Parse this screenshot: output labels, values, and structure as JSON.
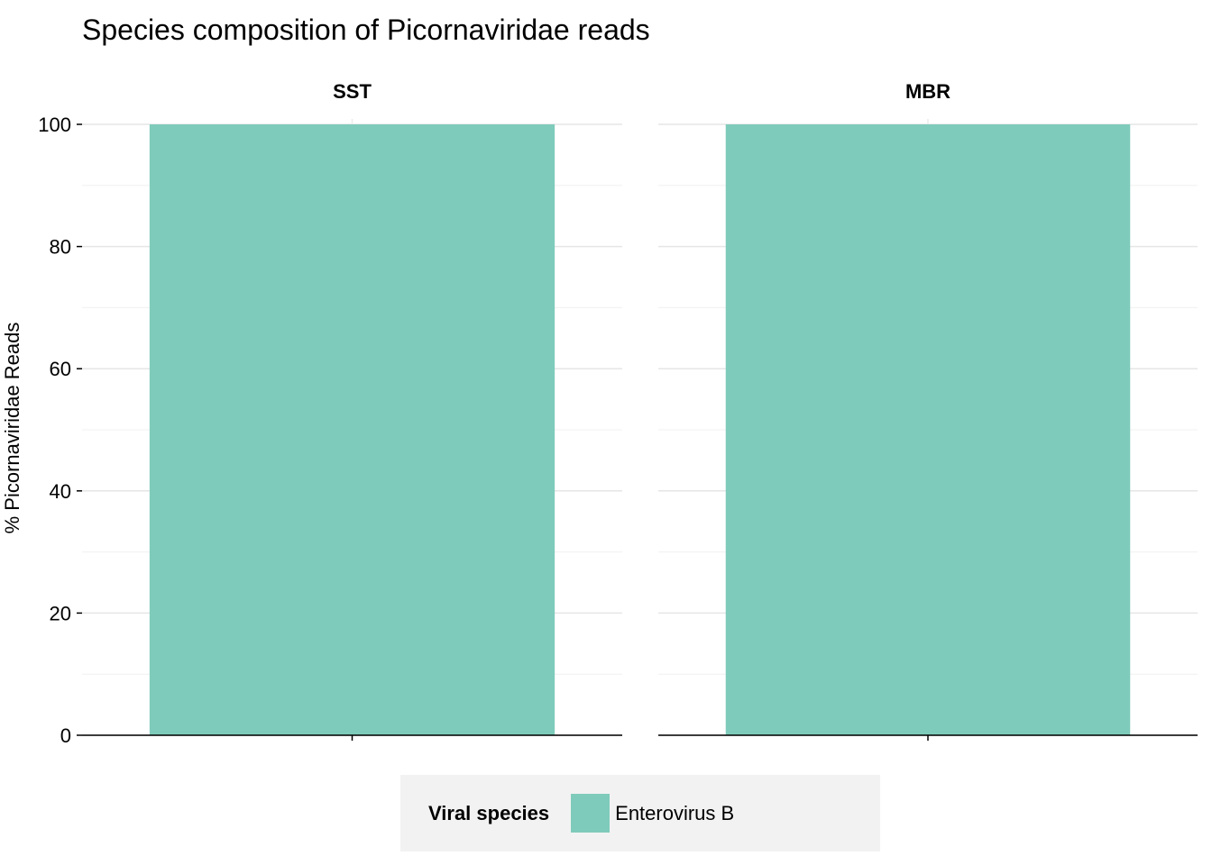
{
  "chart_data": {
    "type": "bar",
    "title": "Species composition of Picornaviridae reads",
    "xlabel": "",
    "ylabel": "% Picornaviridae Reads",
    "ylim": [
      0,
      100
    ],
    "yticks": [
      0,
      20,
      40,
      60,
      80,
      100
    ],
    "grid": true,
    "legend_placement": "bottom",
    "legend_title": "Viral species",
    "facets": [
      {
        "name": "SST",
        "series": [
          {
            "name": "Enterovirus B",
            "values": [
              100
            ]
          }
        ]
      },
      {
        "name": "MBR",
        "series": [
          {
            "name": "Enterovirus B",
            "values": [
              100
            ]
          }
        ]
      }
    ],
    "colors": {
      "Enterovirus B": "#7fcbbb"
    }
  }
}
